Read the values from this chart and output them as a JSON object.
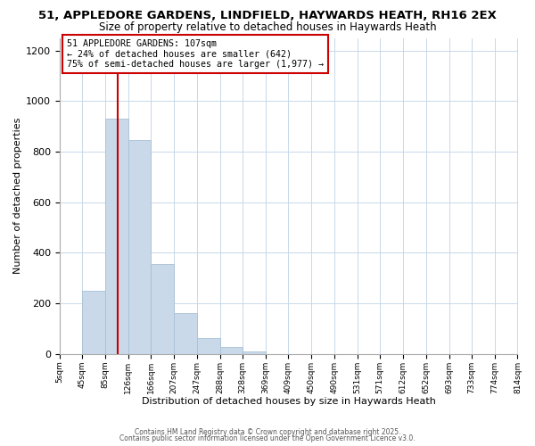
{
  "title": "51, APPLEDORE GARDENS, LINDFIELD, HAYWARDS HEATH, RH16 2EX",
  "subtitle": "Size of property relative to detached houses in Haywards Heath",
  "xlabel": "Distribution of detached houses by size in Haywards Heath",
  "ylabel": "Number of detached properties",
  "bar_edges": [
    5,
    45,
    85,
    126,
    166,
    207,
    247,
    288,
    328,
    369,
    409,
    450,
    490,
    531,
    571,
    612,
    652,
    693,
    733,
    774,
    814
  ],
  "bar_heights": [
    0,
    250,
    930,
    845,
    355,
    160,
    62,
    28,
    10,
    0,
    0,
    0,
    0,
    0,
    0,
    0,
    0,
    0,
    0,
    0
  ],
  "bar_color": "#c9d9ea",
  "bar_edge_color": "#a8c0d6",
  "vline_x": 107,
  "vline_color": "#cc0000",
  "annotation_title": "51 APPLEDORE GARDENS: 107sqm",
  "annotation_line2": "← 24% of detached houses are smaller (642)",
  "annotation_line3": "75% of semi-detached houses are larger (1,977) →",
  "annotation_box_color": "#cc0000",
  "annotation_bg": "#ffffff",
  "ylim": [
    0,
    1250
  ],
  "xlim": [
    5,
    814
  ],
  "tick_labels": [
    "5sqm",
    "45sqm",
    "85sqm",
    "126sqm",
    "166sqm",
    "207sqm",
    "247sqm",
    "288sqm",
    "328sqm",
    "369sqm",
    "409sqm",
    "450sqm",
    "490sqm",
    "531sqm",
    "571sqm",
    "612sqm",
    "652sqm",
    "693sqm",
    "733sqm",
    "774sqm",
    "814sqm"
  ],
  "tick_positions": [
    5,
    45,
    85,
    126,
    166,
    207,
    247,
    288,
    328,
    369,
    409,
    450,
    490,
    531,
    571,
    612,
    652,
    693,
    733,
    774,
    814
  ],
  "footer1": "Contains HM Land Registry data © Crown copyright and database right 2025.",
  "footer2": "Contains public sector information licensed under the Open Government Licence v3.0.",
  "bg_color": "#ffffff",
  "grid_color": "#c8d8e8",
  "yticks": [
    0,
    200,
    400,
    600,
    800,
    1000,
    1200
  ]
}
